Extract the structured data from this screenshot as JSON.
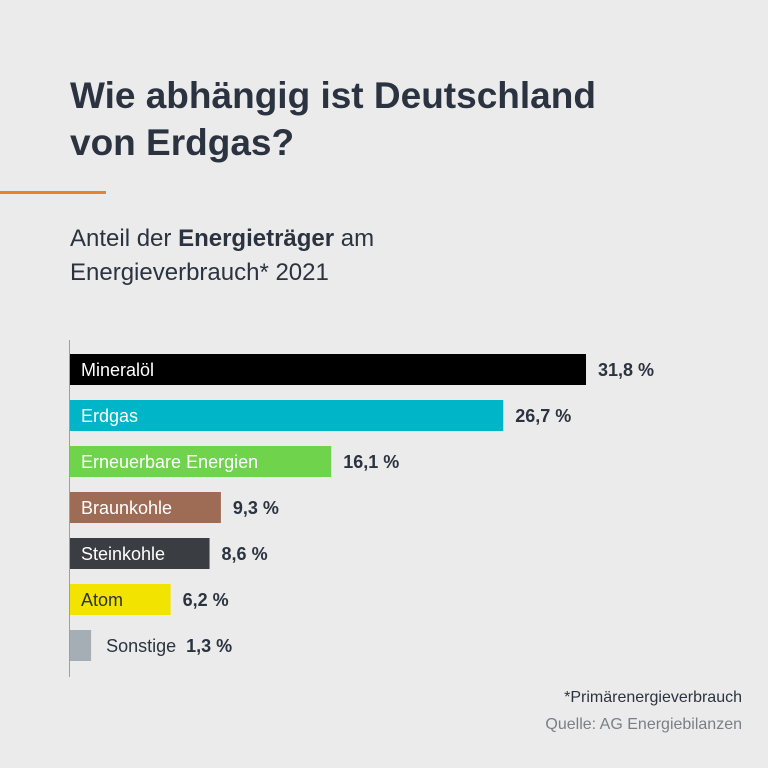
{
  "header": {
    "title_line1": "Wie abhängig ist Deutschland",
    "title_line2": "von Erdgas?",
    "subtitle_prefix": "Anteil der ",
    "subtitle_bold": "Energieträger",
    "subtitle_suffix": " am",
    "subtitle_line2": "Energieverbrauch* 2021",
    "accent_color": "#e8822c"
  },
  "chart_data": {
    "type": "bar",
    "orientation": "horizontal",
    "categories": [
      "Mineralöl",
      "Erdgas",
      "Erneuerbare Energien",
      "Braunkohle",
      "Steinkohle",
      "Atom",
      "Sonstige"
    ],
    "values": [
      31.8,
      26.7,
      16.1,
      9.3,
      8.6,
      6.2,
      1.3
    ],
    "value_labels": [
      "31,8 %",
      "26,7 %",
      "16,1 %",
      "9,3 %",
      "8,6 %",
      "6,2 %",
      "1,3 %"
    ],
    "colors": [
      "#000000",
      "#00b5c8",
      "#6fd44b",
      "#9e6b55",
      "#3a3d42",
      "#f2e300",
      "#a5adb5"
    ],
    "label_colors": [
      "#ffffff",
      "#ffffff",
      "#ffffff",
      "#ffffff",
      "#ffffff",
      "#2b3340",
      "#2b3340"
    ],
    "labels_inside": [
      true,
      true,
      true,
      true,
      true,
      true,
      false
    ],
    "xlim": [
      0,
      31.8
    ],
    "grid": false,
    "legend": "none"
  },
  "footer": {
    "footnote": "*Primärenergieverbrauch",
    "source": "Quelle: AG Energiebilanzen"
  }
}
